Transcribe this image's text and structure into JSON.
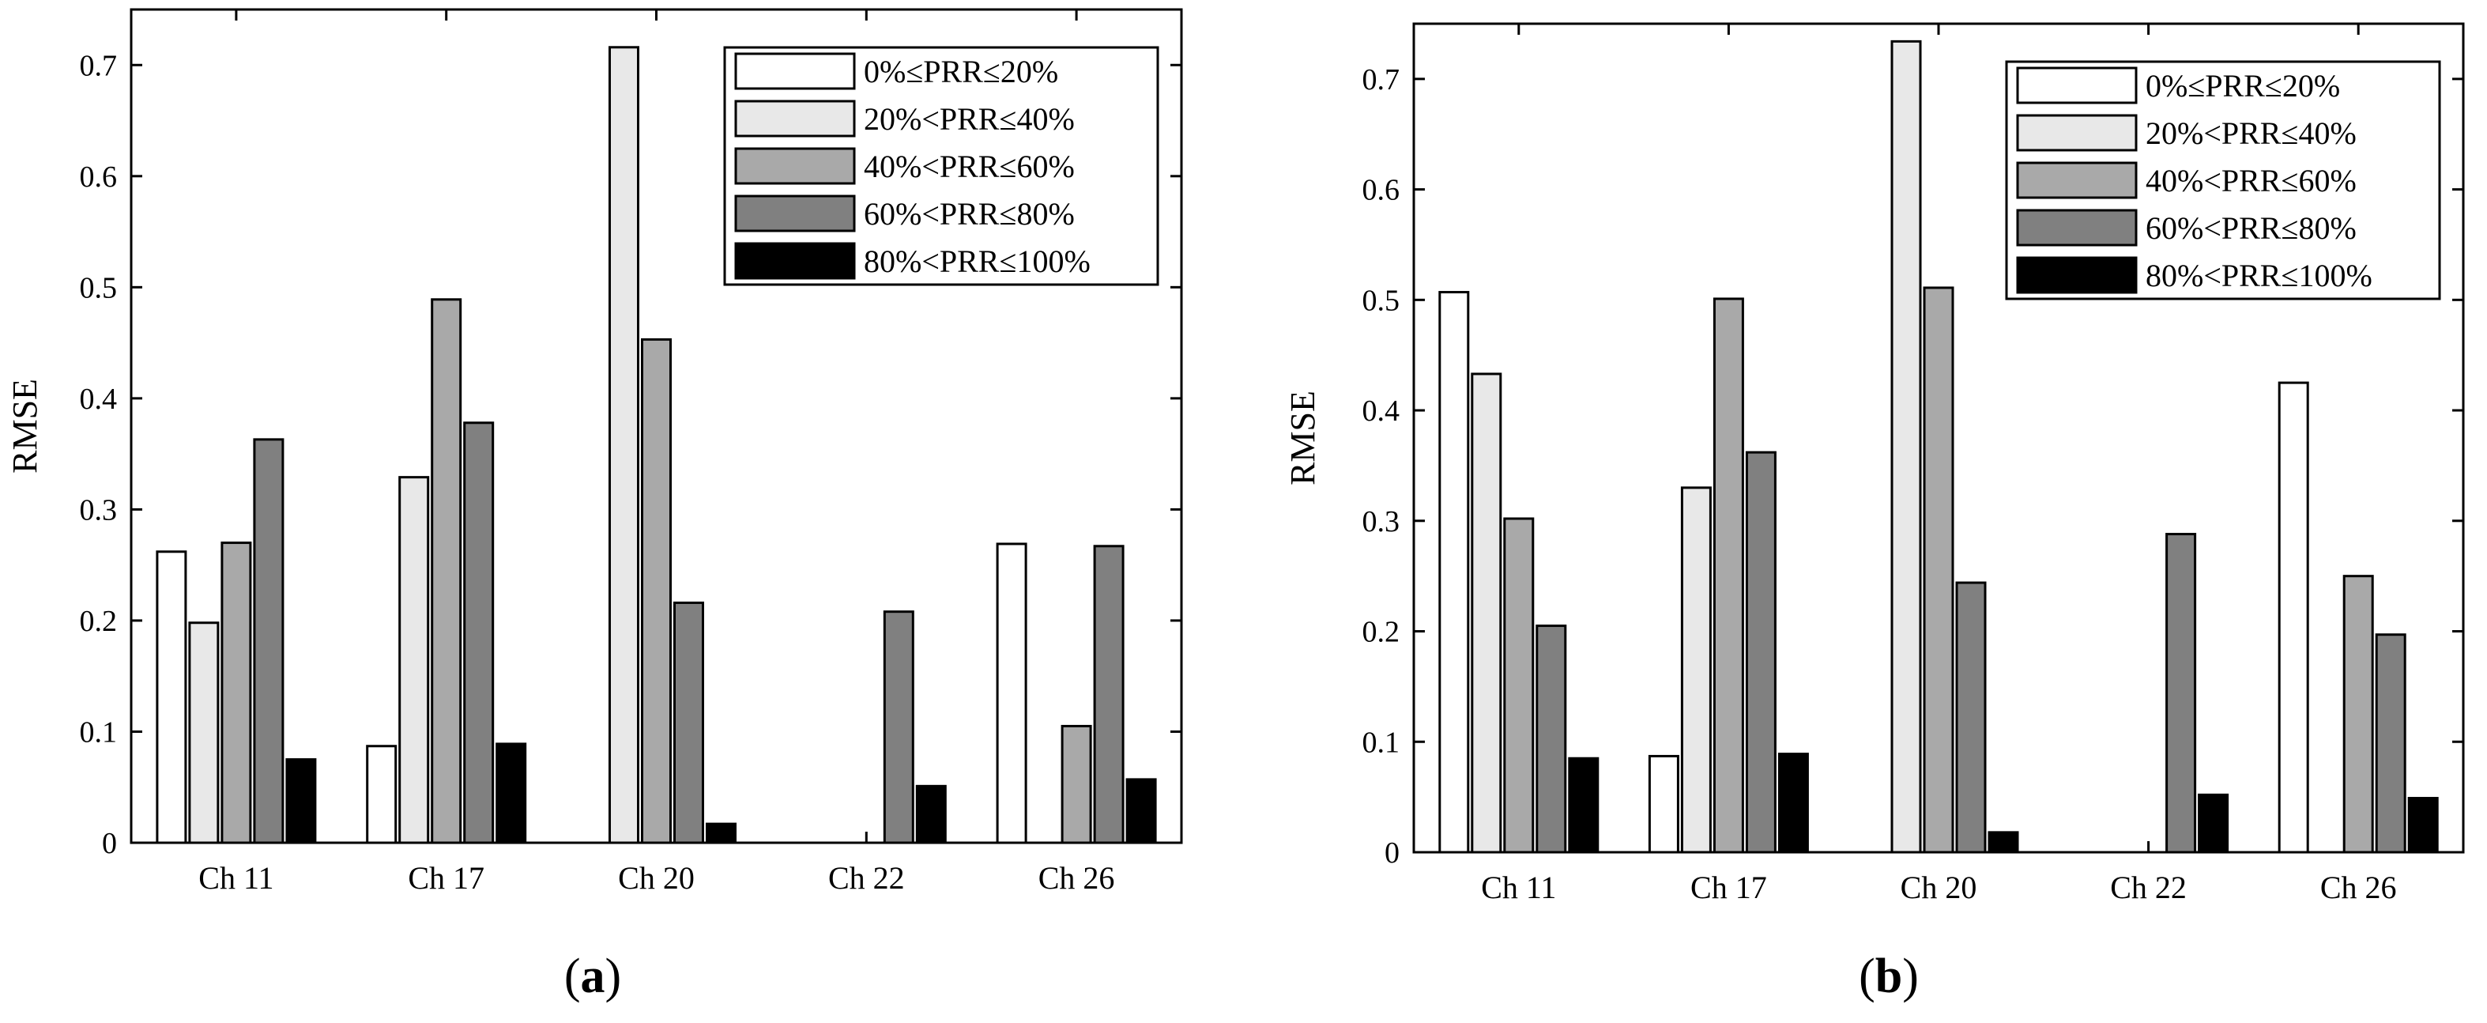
{
  "chart_data": [
    {
      "type": "bar",
      "title": "",
      "panel_label": "a",
      "xlabel": "",
      "ylabel": "RMSE",
      "ylim": [
        0,
        0.75
      ],
      "yticks": [
        0,
        0.1,
        0.2,
        0.3,
        0.4,
        0.5,
        0.6,
        0.7
      ],
      "ytick_labels": [
        "0",
        "0.1",
        "0.2",
        "0.3",
        "0.4",
        "0.5",
        "0.6",
        "0.7"
      ],
      "categories": [
        "Ch 11",
        "Ch 17",
        "Ch 20",
        "Ch 22",
        "Ch 26"
      ],
      "legend_position": "top-right",
      "grid": false,
      "series": [
        {
          "name": "0%≤PRR≤20%",
          "color": "#ffffff",
          "values": [
            0.262,
            0.087,
            0,
            0,
            0.269
          ]
        },
        {
          "name": "20%<PRR≤40%",
          "color": "#e8e8e8",
          "values": [
            0.198,
            0.329,
            0.716,
            0,
            0
          ]
        },
        {
          "name": "40%<PRR≤60%",
          "color": "#a9a9a9",
          "values": [
            0.27,
            0.489,
            0.453,
            0,
            0.105
          ]
        },
        {
          "name": "60%<PRR≤80%",
          "color": "#808080",
          "values": [
            0.363,
            0.378,
            0.216,
            0.208,
            0.267
          ]
        },
        {
          "name": "80%<PRR≤100%",
          "color": "#000000",
          "values": [
            0.075,
            0.089,
            0.017,
            0.051,
            0.057
          ]
        }
      ]
    },
    {
      "type": "bar",
      "title": "",
      "panel_label": "b",
      "xlabel": "",
      "ylabel": "RMSE",
      "ylim": [
        0,
        0.75
      ],
      "yticks": [
        0,
        0.1,
        0.2,
        0.3,
        0.4,
        0.5,
        0.6,
        0.7
      ],
      "ytick_labels": [
        "0",
        "0.1",
        "0.2",
        "0.3",
        "0.4",
        "0.5",
        "0.6",
        "0.7"
      ],
      "categories": [
        "Ch 11",
        "Ch 17",
        "Ch 20",
        "Ch 22",
        "Ch 26"
      ],
      "legend_position": "top-right",
      "grid": false,
      "series": [
        {
          "name": "0%≤PRR≤20%",
          "color": "#ffffff",
          "values": [
            0.507,
            0.087,
            0,
            0,
            0.425
          ]
        },
        {
          "name": "20%<PRR≤40%",
          "color": "#e8e8e8",
          "values": [
            0.433,
            0.33,
            0.734,
            0,
            0
          ]
        },
        {
          "name": "40%<PRR≤60%",
          "color": "#a9a9a9",
          "values": [
            0.302,
            0.501,
            0.511,
            0,
            0.25
          ]
        },
        {
          "name": "60%<PRR≤80%",
          "color": "#808080",
          "values": [
            0.205,
            0.362,
            0.244,
            0.288,
            0.197
          ]
        },
        {
          "name": "80%<PRR≤100%",
          "color": "#000000",
          "values": [
            0.085,
            0.089,
            0.018,
            0.052,
            0.049
          ]
        }
      ]
    }
  ]
}
